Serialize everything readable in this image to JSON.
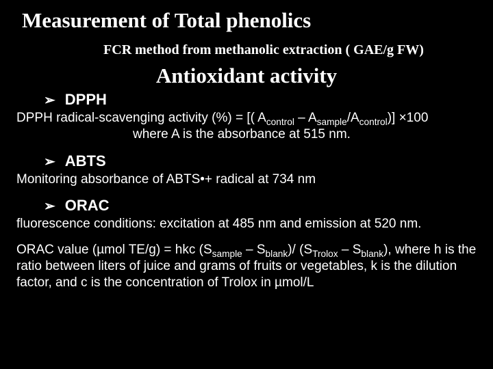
{
  "title1": "Measurement of Total phenolics",
  "subtitle": "FCR method from methanolic extraction ( GAE/g FW)",
  "title2": "Antioxidant activity",
  "sections": {
    "dpph": {
      "heading": "DPPH",
      "line1_pre": "DPPH radical-scavenging activity (%) = [( A",
      "s1": "control",
      "line1_mid1": " – A",
      "s2": "sample",
      "line1_mid2": "/A",
      "s3": "control",
      "line1_post": ")] ×100",
      "line2": "where A is the absorbance at 515 nm."
    },
    "abts": {
      "heading": "ABTS",
      "line": "Monitoring absorbance of ABTS•+ radical at 734 nm"
    },
    "orac": {
      "heading": "ORAC",
      "line1": "fluorescence conditions: excitation at 485 nm and emission at 520 nm.",
      "line2_pre": "ORAC value (µmol TE/g) = hkc (S",
      "s1": "sample",
      "line2_m1": " – S",
      "s2": "blank",
      "line2_m2": ")/ (S",
      "s3": "Trolox",
      "line2_m3": " – S",
      "s4": "blank",
      "line2_post": "), where h is the ratio between liters of juice and grams of fruits or vegetables, k is the dilution factor, and c is the concentration of Trolox in µmol/L"
    }
  },
  "glyphs": {
    "arrow": "➢"
  }
}
